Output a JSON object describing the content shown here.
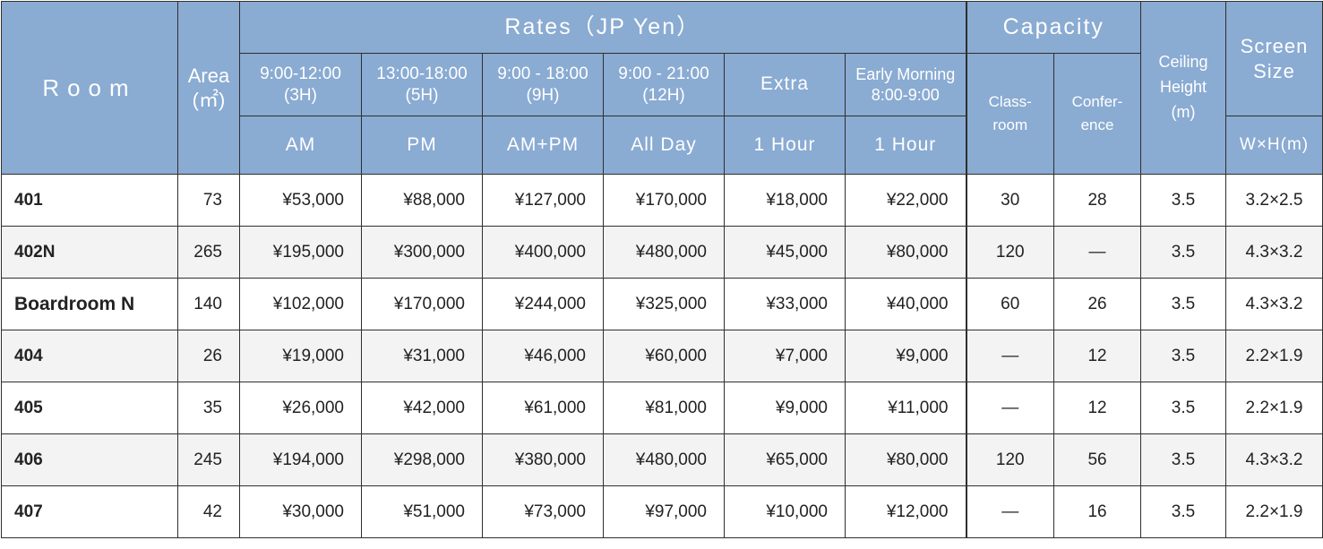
{
  "header": {
    "room": "Room",
    "area": [
      "Area",
      "(㎡)"
    ],
    "rates": "Rates（JP Yen）",
    "capacity": "Capacity",
    "ceiling": [
      "Ceiling",
      "Height",
      "(m)"
    ],
    "screen": [
      "Screen",
      "Size"
    ],
    "screen_unit": "W×H(m)",
    "time_slots": [
      [
        "9:00-12:00",
        "(3H)"
      ],
      [
        "13:00-18:00",
        "(5H)"
      ],
      [
        "9:00 - 18:00",
        "(9H)"
      ],
      [
        "9:00 - 21:00",
        "(12H)"
      ],
      [
        "Extra"
      ],
      [
        "Early Morning",
        "8:00-9:00"
      ]
    ],
    "periods": [
      "AM",
      "PM",
      "AM+PM",
      "All Day",
      "1 Hour",
      "1 Hour"
    ],
    "classroom": [
      "Class-",
      "room"
    ],
    "conference": [
      "Confer-",
      "ence"
    ]
  },
  "rows": [
    {
      "room": "401",
      "area": "73",
      "am": "¥53,000",
      "pm": "¥88,000",
      "ampm": "¥127,000",
      "allday": "¥170,000",
      "extra": "¥18,000",
      "early": "¥22,000",
      "classroom": "30",
      "conference": "28",
      "ceiling": "3.5",
      "screen": "3.2×2.5"
    },
    {
      "room": "402N",
      "area": "265",
      "am": "¥195,000",
      "pm": "¥300,000",
      "ampm": "¥400,000",
      "allday": "¥480,000",
      "extra": "¥45,000",
      "early": "¥80,000",
      "classroom": "120",
      "conference": "—",
      "ceiling": "3.5",
      "screen": "4.3×3.2"
    },
    {
      "room": "Boardroom N",
      "area": "140",
      "am": "¥102,000",
      "pm": "¥170,000",
      "ampm": "¥244,000",
      "allday": "¥325,000",
      "extra": "¥33,000",
      "early": "¥40,000",
      "classroom": "60",
      "conference": "26",
      "ceiling": "3.5",
      "screen": "4.3×3.2"
    },
    {
      "room": "404",
      "area": "26",
      "am": "¥19,000",
      "pm": "¥31,000",
      "ampm": "¥46,000",
      "allday": "¥60,000",
      "extra": "¥7,000",
      "early": "¥9,000",
      "classroom": "—",
      "conference": "12",
      "ceiling": "3.5",
      "screen": "2.2×1.9"
    },
    {
      "room": "405",
      "area": "35",
      "am": "¥26,000",
      "pm": "¥42,000",
      "ampm": "¥61,000",
      "allday": "¥81,000",
      "extra": "¥9,000",
      "early": "¥11,000",
      "classroom": "—",
      "conference": "12",
      "ceiling": "3.5",
      "screen": "2.2×1.9"
    },
    {
      "room": "406",
      "area": "245",
      "am": "¥194,000",
      "pm": "¥298,000",
      "ampm": "¥380,000",
      "allday": "¥480,000",
      "extra": "¥65,000",
      "early": "¥80,000",
      "classroom": "120",
      "conference": "56",
      "ceiling": "3.5",
      "screen": "4.3×3.2"
    },
    {
      "room": "407",
      "area": "42",
      "am": "¥30,000",
      "pm": "¥51,000",
      "ampm": "¥73,000",
      "allday": "¥97,000",
      "extra": "¥10,000",
      "early": "¥12,000",
      "classroom": "—",
      "conference": "16",
      "ceiling": "3.5",
      "screen": "2.2×1.9"
    }
  ]
}
